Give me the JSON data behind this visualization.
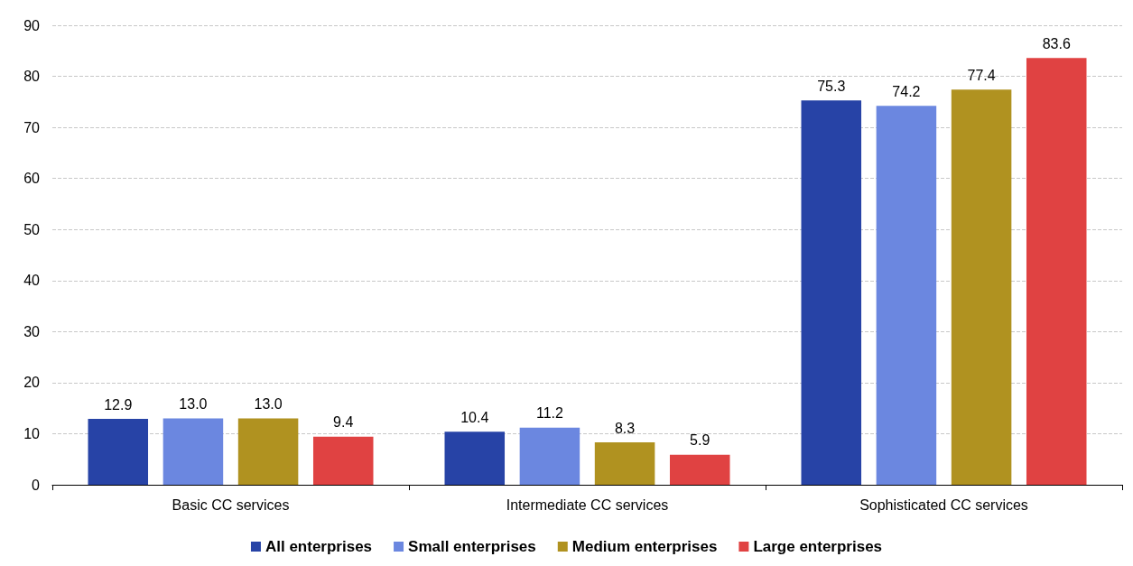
{
  "chart_data": {
    "type": "bar",
    "categories": [
      "Basic CC services",
      "Intermediate CC services",
      "Sophisticated CC services"
    ],
    "series": [
      {
        "name": "All enterprises",
        "color": "#2743a6",
        "values": [
          12.9,
          10.4,
          75.3
        ],
        "value_labels": [
          "12.9",
          "10.4",
          "75.3"
        ]
      },
      {
        "name": "Small enterprises",
        "color": "#6b87e0",
        "values": [
          13.0,
          11.2,
          74.2
        ],
        "value_labels": [
          "13.0",
          "11.2",
          "74.2"
        ]
      },
      {
        "name": "Medium enterprises",
        "color": "#b09220",
        "values": [
          13.0,
          8.3,
          77.4
        ],
        "value_labels": [
          "13.0",
          "8.3",
          "77.4"
        ]
      },
      {
        "name": "Large enterprises",
        "color": "#e04242",
        "values": [
          9.4,
          5.9,
          83.6
        ],
        "value_labels": [
          "9.4",
          "5.9",
          "83.6"
        ]
      }
    ],
    "ylim": [
      0,
      90
    ],
    "yticks": [
      0,
      10,
      20,
      30,
      40,
      50,
      60,
      70,
      80,
      90
    ],
    "grid": "y",
    "legend": "bottom"
  }
}
